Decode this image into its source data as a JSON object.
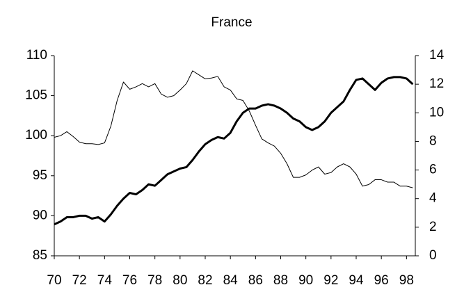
{
  "chart_data": {
    "type": "line",
    "title": "France",
    "x": [
      70,
      70.5,
      71,
      71.5,
      72,
      72.5,
      73,
      73.5,
      74,
      74.5,
      75,
      75.5,
      76,
      76.5,
      77,
      77.5,
      78,
      78.5,
      79,
      79.5,
      80,
      80.5,
      81,
      81.5,
      82,
      82.5,
      83,
      83.5,
      84,
      84.5,
      85,
      85.5,
      86,
      86.5,
      87,
      87.5,
      88,
      88.5,
      89,
      89.5,
      90,
      90.5,
      91,
      91.5,
      92,
      92.5,
      93,
      93.5,
      94,
      94.5,
      95,
      95.5,
      96,
      96.5,
      97,
      97.5,
      98,
      98.5
    ],
    "series": [
      {
        "color": "#000000",
        "width": 1,
        "values": [
          99.8,
          100.0,
          100.5,
          99.9,
          99.2,
          99.0,
          99.0,
          98.9,
          99.1,
          101.2,
          104.4,
          106.7,
          105.8,
          106.1,
          106.5,
          106.1,
          106.5,
          105.2,
          104.8,
          105.0,
          105.7,
          106.5,
          108.1,
          107.6,
          107.1,
          107.2,
          107.4,
          106.1,
          105.7,
          104.6,
          104.4,
          103.1,
          101.3,
          99.6,
          99.1,
          98.7,
          97.8,
          96.5,
          94.8,
          94.8,
          95.1,
          95.7,
          96.1,
          95.2,
          95.4,
          96.1,
          96.5,
          96.1,
          95.2,
          93.7,
          93.9,
          94.5,
          94.5,
          94.2,
          94.2,
          93.7,
          93.7,
          93.5
        ]
      },
      {
        "color": "#000000",
        "width": 3,
        "axis": "y2",
        "values": [
          2.2,
          2.4,
          2.7,
          2.7,
          2.8,
          2.8,
          2.6,
          2.7,
          2.4,
          2.9,
          3.5,
          4.0,
          4.4,
          4.3,
          4.6,
          5.0,
          4.9,
          5.3,
          5.7,
          5.9,
          6.1,
          6.2,
          6.7,
          7.3,
          7.8,
          8.1,
          8.3,
          8.2,
          8.6,
          9.4,
          10.0,
          10.3,
          10.3,
          10.5,
          10.6,
          10.5,
          10.3,
          10.0,
          9.6,
          9.4,
          9.0,
          8.8,
          9.0,
          9.4,
          10.0,
          10.4,
          10.8,
          11.6,
          12.3,
          12.4,
          12.0,
          11.6,
          12.1,
          12.4,
          12.5,
          12.5,
          12.4,
          12.0
        ]
      }
    ],
    "xlim": [
      70,
      98.7
    ],
    "xticks": [
      70,
      72,
      74,
      76,
      78,
      80,
      82,
      84,
      86,
      88,
      90,
      92,
      94,
      96,
      98
    ],
    "ylim": [
      85,
      110
    ],
    "yticks": [
      85,
      90,
      95,
      100,
      105,
      110
    ],
    "y2lim": [
      0,
      14
    ],
    "y2ticks": [
      0,
      2,
      4,
      6,
      8,
      10,
      12,
      14
    ]
  }
}
